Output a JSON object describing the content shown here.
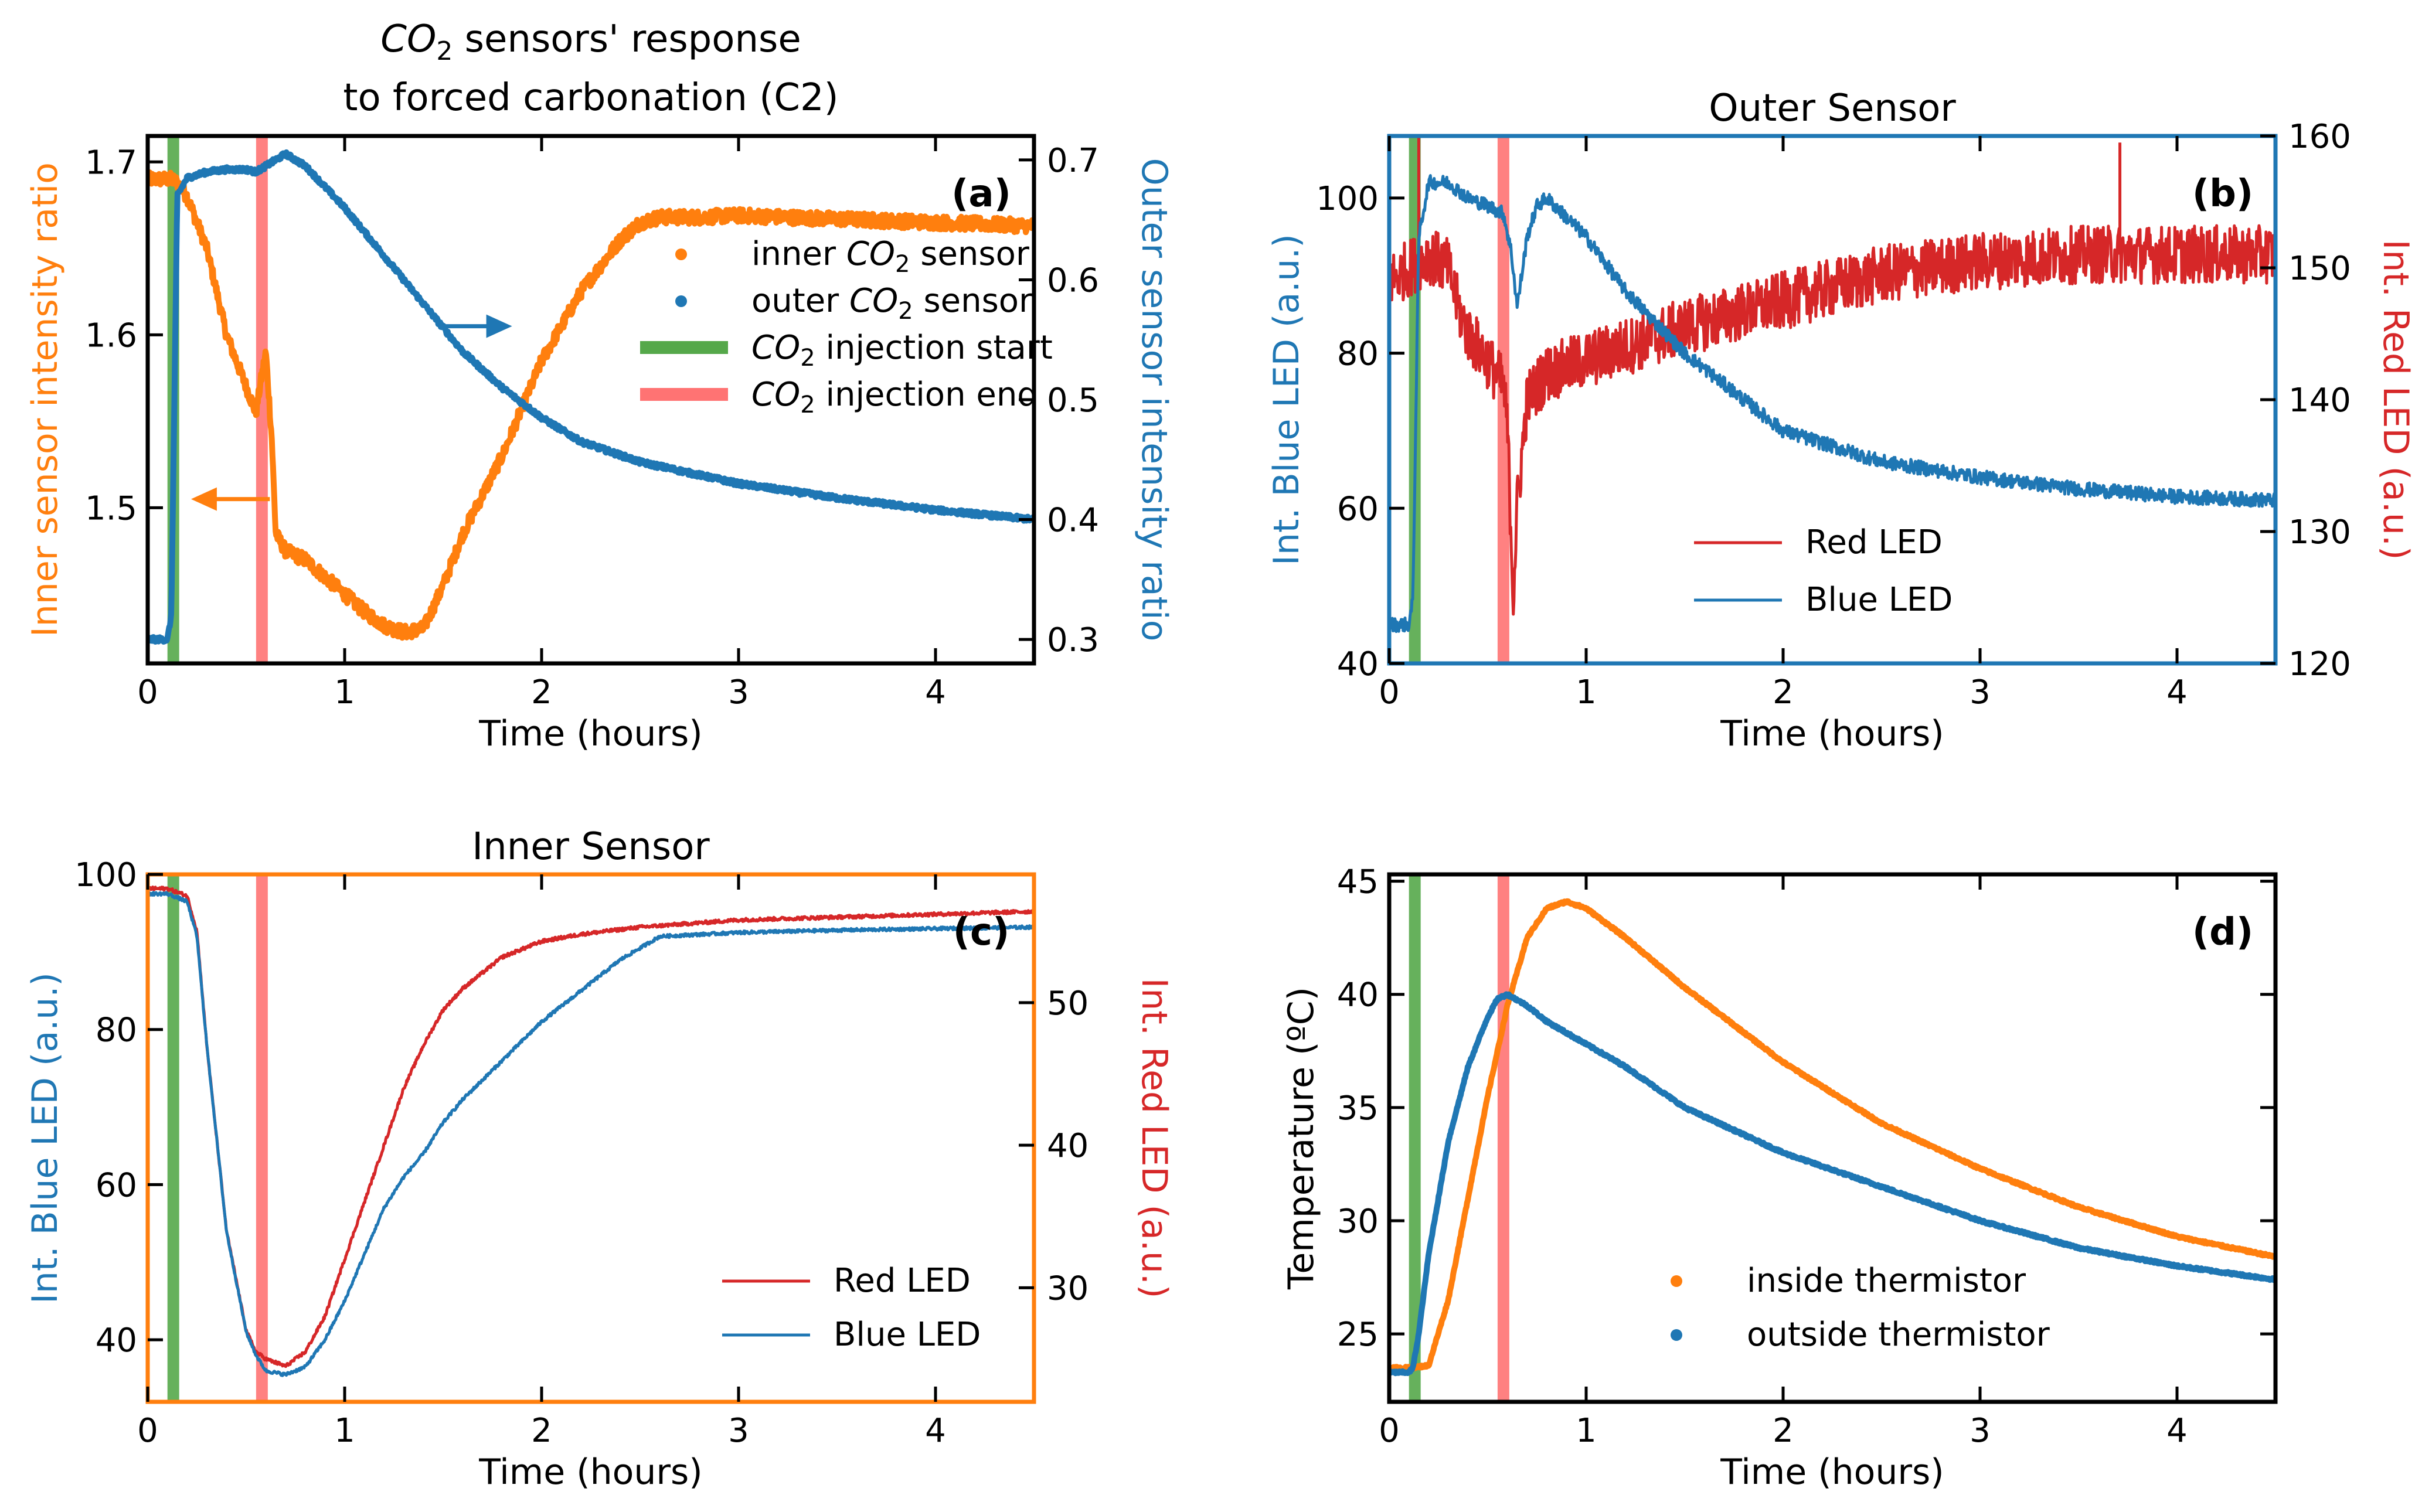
{
  "colors": {
    "orange": "#ff7f0e",
    "blue": "#1f77b4",
    "red": "#d62728",
    "green": "#55a84a",
    "salmon": "#ff7373"
  },
  "chart_data": [
    {
      "id": "a",
      "type": "scatter",
      "title_line1_prefix": "CO",
      "title_line1_sub": "2",
      "title_line1_suffix": " sensors' response",
      "title_line2": "to forced carbonation (C2)",
      "panel_label": "(a)",
      "frame_color": "#000000",
      "xlabel": "Time (hours)",
      "xlim": [
        0,
        4.5
      ],
      "xticks": [
        0,
        1,
        2,
        3,
        4
      ],
      "ylabel_left": "Inner sensor intensity ratio",
      "ylabel_left_color": "#ff7f0e",
      "ylim_left": [
        1.41,
        1.715
      ],
      "yticks_left": [
        1.5,
        1.6,
        1.7
      ],
      "ylabel_right": "Outer sensor intensity ratio",
      "ylabel_right_color": "#1f77b4",
      "ylim_right": [
        0.28,
        0.72
      ],
      "yticks_right": [
        0.3,
        0.4,
        0.5,
        0.6,
        0.7
      ],
      "injection_start": 0.13,
      "injection_end": 0.58,
      "series": [
        {
          "name": "inner CO2 sensor",
          "axis": "left",
          "color": "#ff7f0e",
          "noise": 0.004,
          "x": [
            0,
            0.12,
            0.15,
            0.2,
            0.3,
            0.4,
            0.5,
            0.55,
            0.57,
            0.6,
            0.63,
            0.65,
            0.7,
            0.8,
            0.9,
            1.0,
            1.1,
            1.2,
            1.3,
            1.4,
            1.5,
            1.6,
            1.8,
            2.0,
            2.2,
            2.4,
            2.5,
            2.6,
            2.8,
            3.0,
            3.5,
            4.0,
            4.5
          ],
          "y": [
            1.69,
            1.69,
            1.688,
            1.68,
            1.65,
            1.6,
            1.57,
            1.555,
            1.57,
            1.59,
            1.54,
            1.485,
            1.475,
            1.47,
            1.46,
            1.45,
            1.44,
            1.432,
            1.428,
            1.43,
            1.455,
            1.485,
            1.53,
            1.585,
            1.625,
            1.655,
            1.665,
            1.668,
            1.668,
            1.669,
            1.667,
            1.665,
            1.663
          ]
        },
        {
          "name": "outer CO2 sensor",
          "axis": "right",
          "color": "#1f77b4",
          "noise": 0.002,
          "x": [
            0,
            0.1,
            0.12,
            0.15,
            0.2,
            0.3,
            0.4,
            0.5,
            0.55,
            0.6,
            0.7,
            0.8,
            1.0,
            1.2,
            1.4,
            1.6,
            1.8,
            2.0,
            2.2,
            2.5,
            3.0,
            3.5,
            4.0,
            4.5
          ],
          "y": [
            0.3,
            0.3,
            0.32,
            0.67,
            0.685,
            0.69,
            0.692,
            0.692,
            0.69,
            0.695,
            0.705,
            0.695,
            0.66,
            0.62,
            0.58,
            0.54,
            0.51,
            0.485,
            0.465,
            0.448,
            0.43,
            0.418,
            0.408,
            0.4
          ]
        }
      ],
      "annotations": [
        {
          "text": "outer arrow",
          "direction": "right",
          "axis": "left",
          "x0": 1.5,
          "x1": 1.85,
          "y": 1.605,
          "color": "#1f77b4"
        },
        {
          "text": "inner arrow",
          "direction": "left",
          "axis": "left",
          "x0": 0.62,
          "x1": 0.22,
          "y": 1.505,
          "color": "#ff7f0e"
        }
      ],
      "legend": {
        "placement": "center-right",
        "entries": [
          {
            "kind": "dot",
            "color": "#ff7f0e",
            "prefix": "inner ",
            "chem": "CO",
            "sub": "2",
            "suffix": " sensor"
          },
          {
            "kind": "dot",
            "color": "#1f77b4",
            "prefix": "outer ",
            "chem": "CO",
            "sub": "2",
            "suffix": " sensor"
          },
          {
            "kind": "bar",
            "color": "#55a84a",
            "prefix": "",
            "chem": "CO",
            "sub": "2",
            "suffix": " injection start"
          },
          {
            "kind": "bar",
            "color": "#ff7373",
            "prefix": "",
            "chem": "CO",
            "sub": "2",
            "suffix": " injection end"
          }
        ]
      }
    },
    {
      "id": "b",
      "type": "line",
      "title": "Outer Sensor",
      "panel_label": "(b)",
      "frame_color": "#1f77b4",
      "xlabel": "Time (hours)",
      "xlim": [
        0,
        4.5
      ],
      "xticks": [
        0,
        1,
        2,
        3,
        4
      ],
      "ylabel_left": "Int. Blue LED (a.u.)",
      "ylabel_left_color": "#1f77b4",
      "ylim_left": [
        40,
        108
      ],
      "yticks_left": [
        40,
        60,
        80,
        100
      ],
      "ylabel_right": "Int. Red LED (a.u.)",
      "ylabel_right_color": "#d62728",
      "ylim_right": [
        120,
        160
      ],
      "yticks_right": [
        120,
        130,
        140,
        150,
        160
      ],
      "injection_start": 0.13,
      "injection_end": 0.58,
      "series": [
        {
          "name": "Red LED",
          "axis": "right",
          "color": "#d62728",
          "noise": 2.2,
          "x": [
            0,
            0.1,
            0.2,
            0.3,
            0.35,
            0.4,
            0.5,
            0.58,
            0.6,
            0.63,
            0.65,
            0.7,
            0.8,
            1.0,
            1.2,
            1.5,
            2.0,
            2.5,
            3.0,
            3.5,
            4.0,
            4.5
          ],
          "y": [
            149,
            150,
            151,
            150,
            147,
            145,
            143,
            141,
            138,
            125,
            132,
            140,
            142,
            143,
            144,
            145.5,
            147.5,
            149.5,
            150.5,
            151,
            151,
            151
          ],
          "spikes": [
            {
              "x": 0.15,
              "y": 160
            },
            {
              "x": 3.71,
              "y": 159.5
            }
          ]
        },
        {
          "name": "Blue LED",
          "axis": "left",
          "color": "#1f77b4",
          "noise": 0.9,
          "x": [
            0,
            0.1,
            0.12,
            0.15,
            0.2,
            0.3,
            0.4,
            0.5,
            0.58,
            0.62,
            0.65,
            0.7,
            0.75,
            0.8,
            1.0,
            1.2,
            1.5,
            2.0,
            2.5,
            3.0,
            3.5,
            4.0,
            4.5
          ],
          "y": [
            45,
            45,
            48,
            95,
            102,
            102,
            100,
            99,
            98,
            93,
            86,
            95,
            99,
            100,
            95,
            88,
            80,
            70,
            66,
            64,
            62.5,
            61.5,
            61
          ]
        }
      ],
      "legend": {
        "placement": "lower-left",
        "entries": [
          {
            "kind": "line",
            "color": "#d62728",
            "label": "Red LED"
          },
          {
            "kind": "line",
            "color": "#1f77b4",
            "label": "Blue LED"
          }
        ]
      }
    },
    {
      "id": "c",
      "type": "line",
      "title": "Inner Sensor",
      "panel_label": "(c)",
      "frame_color": "#ff7f0e",
      "xlabel": "Time (hours)",
      "xlim": [
        0,
        4.5
      ],
      "xticks": [
        0,
        1,
        2,
        3,
        4
      ],
      "ylabel_left": "Int. Blue LED (a.u.)",
      "ylabel_left_color": "#1f77b4",
      "ylim_left": [
        32,
        100
      ],
      "yticks_left": [
        40,
        60,
        80,
        100
      ],
      "ylabel_right": "Int. Red LED (a.u.)",
      "ylabel_right_color": "#d62728",
      "ylim_right": [
        22,
        59
      ],
      "yticks_right": [
        30,
        40,
        50
      ],
      "injection_start": 0.13,
      "injection_end": 0.58,
      "series": [
        {
          "name": "Red LED",
          "axis": "right",
          "color": "#d62728",
          "noise": 0.12,
          "x": [
            0,
            0.1,
            0.2,
            0.25,
            0.3,
            0.4,
            0.5,
            0.55,
            0.6,
            0.7,
            0.8,
            0.9,
            1.0,
            1.1,
            1.2,
            1.3,
            1.4,
            1.5,
            1.6,
            1.8,
            2.0,
            2.2,
            2.5,
            3.0,
            3.5,
            4.0,
            4.5
          ],
          "y": [
            58,
            58,
            57.5,
            55,
            47,
            34,
            27,
            25.5,
            25,
            24.5,
            25.5,
            28,
            32,
            36,
            40,
            44,
            47,
            49.5,
            51,
            53.2,
            54.3,
            54.8,
            55.3,
            55.8,
            56,
            56.2,
            56.4
          ]
        },
        {
          "name": "Blue LED",
          "axis": "left",
          "color": "#1f77b4",
          "noise": 0.2,
          "x": [
            0,
            0.1,
            0.2,
            0.25,
            0.3,
            0.4,
            0.5,
            0.55,
            0.6,
            0.7,
            0.8,
            0.9,
            1.0,
            1.1,
            1.2,
            1.3,
            1.4,
            1.5,
            1.6,
            1.8,
            2.0,
            2.2,
            2.4,
            2.6,
            3.0,
            3.5,
            4.0,
            4.5
          ],
          "y": [
            97.5,
            97.5,
            96.5,
            92,
            78,
            54,
            41,
            38,
            36,
            35.5,
            36.5,
            40,
            45,
            51,
            57,
            61,
            64,
            68,
            71,
            76,
            81,
            85,
            89,
            92,
            92.5,
            92.8,
            93,
            93.2
          ]
        }
      ],
      "legend": {
        "placement": "lower-right",
        "entries": [
          {
            "kind": "line",
            "color": "#d62728",
            "label": "Red LED"
          },
          {
            "kind": "line",
            "color": "#1f77b4",
            "label": "Blue LED"
          }
        ]
      }
    },
    {
      "id": "d",
      "type": "scatter",
      "title": "",
      "panel_label": "(d)",
      "frame_color": "#000000",
      "xlabel": "Time (hours)",
      "xlim": [
        0,
        4.5
      ],
      "xticks": [
        0,
        1,
        2,
        3,
        4
      ],
      "ylabel_left": "Temperature (ºC)",
      "ylabel_left_color": "#000000",
      "ylim_left": [
        22,
        45.3
      ],
      "yticks_left": [
        25,
        30,
        35,
        40,
        45
      ],
      "injection_start": 0.13,
      "injection_end": 0.58,
      "series": [
        {
          "name": "inside thermistor",
          "axis": "left",
          "color": "#ff7f0e",
          "noise": 0.05,
          "x": [
            0,
            0.1,
            0.2,
            0.3,
            0.4,
            0.5,
            0.6,
            0.7,
            0.8,
            0.9,
            1.0,
            1.2,
            1.5,
            2.0,
            2.5,
            3.0,
            3.5,
            4.0,
            4.5
          ],
          "y": [
            23.5,
            23.5,
            23.6,
            26.5,
            31,
            35.5,
            39.5,
            42.5,
            43.8,
            44.1,
            43.8,
            42.5,
            40.3,
            37,
            34.3,
            32.3,
            30.6,
            29.3,
            28.4
          ]
        },
        {
          "name": "outside thermistor",
          "axis": "left",
          "color": "#1f77b4",
          "noise": 0.05,
          "x": [
            0,
            0.1,
            0.12,
            0.15,
            0.2,
            0.3,
            0.4,
            0.5,
            0.55,
            0.6,
            0.7,
            0.8,
            1.0,
            1.2,
            1.5,
            2.0,
            2.5,
            3.0,
            3.5,
            4.0,
            4.5
          ],
          "y": [
            23.3,
            23.3,
            23.5,
            25,
            28.5,
            33.5,
            36.8,
            39,
            39.8,
            40,
            39.5,
            38.8,
            37.8,
            36.8,
            35,
            33,
            31.5,
            30,
            28.8,
            28,
            27.4
          ]
        }
      ],
      "legend": {
        "placement": "lower-right",
        "entries": [
          {
            "kind": "dot",
            "color": "#ff7f0e",
            "label": "inside thermistor"
          },
          {
            "kind": "dot",
            "color": "#1f77b4",
            "label": "outside thermistor"
          }
        ]
      }
    }
  ]
}
